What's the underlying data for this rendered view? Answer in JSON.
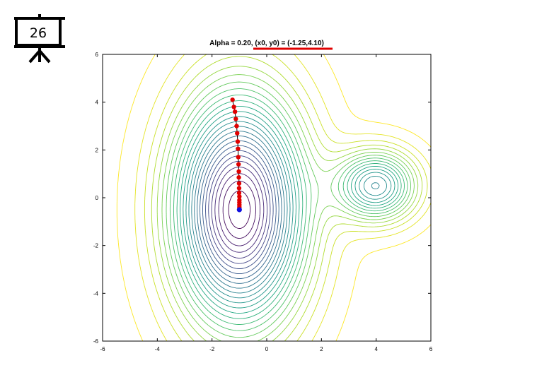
{
  "slide": {
    "number": "26",
    "icon": "presentation-board-icon"
  },
  "chart_data": {
    "type": "line",
    "title": "Alpha = 0.20, (x0, y0) = (-1.25,4.10)",
    "title_underline_color": "#e00000",
    "xlabel": "",
    "ylabel": "",
    "xlim": [
      -6,
      6
    ],
    "ylim": [
      -6,
      6
    ],
    "x_ticks": [
      -6,
      -4,
      -2,
      0,
      2,
      4,
      6
    ],
    "y_ticks": [
      -6,
      -4,
      -2,
      0,
      2,
      4,
      6
    ],
    "grid": false,
    "legend": "none",
    "contour": {
      "colormap": "viridis",
      "global_minimum": [
        -1.0,
        -0.5
      ],
      "local_minimum": [
        4.0,
        0.5
      ]
    },
    "series": [
      {
        "kind": "gradient-descent-path",
        "color": "#e00000",
        "x": [
          -1.25,
          -1.2,
          -1.16,
          -1.13,
          -1.1,
          -1.08,
          -1.06,
          -1.05,
          -1.04,
          -1.03,
          -1.02,
          -1.02,
          -1.01,
          -1.01,
          -1.01,
          -1.0,
          -1.0,
          -1.0,
          -1.0,
          -1.0
        ],
        "y": [
          4.1,
          3.8,
          3.6,
          3.3,
          3.0,
          2.7,
          2.35,
          2.05,
          1.7,
          1.4,
          1.1,
          0.85,
          0.6,
          0.4,
          0.2,
          0.05,
          -0.1,
          -0.2,
          -0.3,
          -0.4
        ]
      },
      {
        "kind": "final-point",
        "color": "#1010e0",
        "x": [
          -1.0
        ],
        "y": [
          -0.5
        ]
      }
    ]
  }
}
